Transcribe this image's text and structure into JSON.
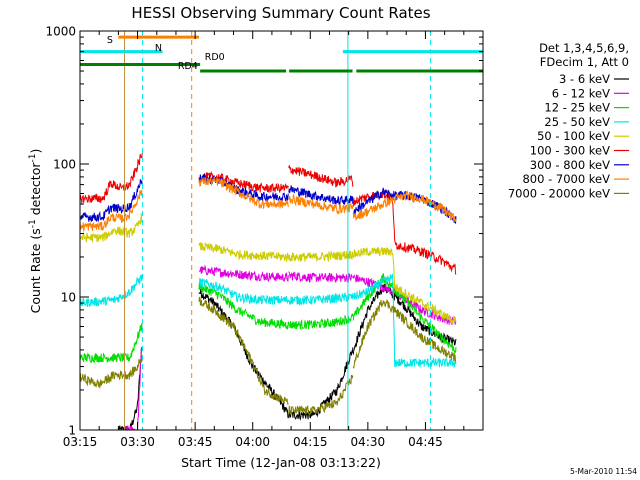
{
  "chart_data": {
    "type": "line",
    "title": "HESSI Observing Summary Count Rates",
    "xlabel": "Start Time (12-Jan-08 03:13:22)",
    "ylabel_main": "Count Rate (s",
    "ylabel_sup1": "-1",
    "ylabel_mid": " detector",
    "ylabel_sup2": "-1",
    "ylabel_end": ")",
    "yscale": "log",
    "xlim_min": [
      195,
      300
    ],
    "ylim": [
      1,
      1000
    ],
    "x_ticks": [
      {
        "v": 195,
        "label": "03:15"
      },
      {
        "v": 210,
        "label": "03:30"
      },
      {
        "v": 225,
        "label": "03:45"
      },
      {
        "v": 240,
        "label": "04:00"
      },
      {
        "v": 255,
        "label": "04:15"
      },
      {
        "v": 270,
        "label": "04:30"
      },
      {
        "v": 285,
        "label": "04:45"
      }
    ],
    "y_ticks": [
      {
        "v": 1,
        "label": "1"
      },
      {
        "v": 10,
        "label": "10"
      },
      {
        "v": 100,
        "label": "100"
      },
      {
        "v": 1000,
        "label": "1000"
      }
    ],
    "legend_header": [
      "Det 1,3,4,5,6,9,",
      "FDecim 1, Att 0"
    ],
    "timestamp": "5-Mar-2010 11:54",
    "flag_bars": [
      {
        "label": "S",
        "color": "#ff8000",
        "value": 900,
        "segments": [
          [
            205,
            226
          ]
        ]
      },
      {
        "label": "N",
        "color": "#00e5e5",
        "value": 700,
        "segments": [
          [
            195,
            216.5
          ],
          [
            263.5,
            300
          ]
        ]
      },
      {
        "label": "RD0",
        "color": "#008000",
        "value": 560,
        "segments": [
          [
            195,
            226.3
          ]
        ]
      },
      {
        "label": "RD4",
        "color": "#008000",
        "value": 500,
        "segments": [
          [
            226.3,
            248.7
          ],
          [
            249.5,
            266
          ],
          [
            267,
            300
          ]
        ]
      }
    ],
    "flag_bar_labels": [
      {
        "text": "S",
        "x": 202,
        "color": "#ff8000"
      },
      {
        "text": "N",
        "x": 214.5,
        "color": "#00c8c8"
      },
      {
        "text": "RD4",
        "x": 220.5,
        "color": "#008000"
      },
      {
        "text": "RD0",
        "x": 227.5,
        "color": "#008000"
      }
    ],
    "vlines": [
      {
        "x": 206.6,
        "color": "#c09040",
        "style": "solid"
      },
      {
        "x": 211.3,
        "color": "#00e5e5",
        "style": "dashed"
      },
      {
        "x": 224.1,
        "color": "#ff8000",
        "style": "dashed"
      },
      {
        "x": 264.8,
        "color": "#00e5e5",
        "style": "solid"
      },
      {
        "x": 286.3,
        "color": "#00e5e5",
        "style": "dashed"
      }
    ],
    "segments": [
      [
        195,
        211.3
      ],
      [
        226,
        249.3
      ],
      [
        249.4,
        266.2
      ],
      [
        266.2,
        300
      ]
    ],
    "series": [
      {
        "name": "3 - 6 keV",
        "color": "#000000",
        "points": [
          [
            205,
            1
          ],
          [
            208,
            1
          ],
          [
            210,
            1.5
          ],
          [
            211,
            4
          ],
          [
            226,
            11
          ],
          [
            230,
            9
          ],
          [
            235,
            6
          ],
          [
            240,
            3
          ],
          [
            248,
            1.5
          ],
          [
            249.3,
            1.3
          ],
          [
            249.4,
            1.3
          ],
          [
            256,
            1.3
          ],
          [
            262,
            2
          ],
          [
            266,
            4
          ],
          [
            266.2,
            4
          ],
          [
            270,
            8
          ],
          [
            274,
            12
          ],
          [
            279,
            9
          ],
          [
            284,
            6
          ],
          [
            289,
            5
          ],
          [
            293,
            4.5
          ]
        ]
      },
      {
        "name": "6 - 12 keV",
        "color": "#e000e0",
        "points": [
          [
            206.5,
            1
          ],
          [
            208,
            1
          ],
          [
            210,
            1
          ],
          [
            211,
            4
          ],
          [
            226,
            16
          ],
          [
            235,
            15
          ],
          [
            240,
            14.5
          ],
          [
            249.3,
            14
          ],
          [
            249.4,
            14.5
          ],
          [
            256,
            14
          ],
          [
            266,
            14
          ],
          [
            266.2,
            14
          ],
          [
            270,
            13
          ],
          [
            274,
            12
          ],
          [
            279,
            10
          ],
          [
            284,
            8
          ],
          [
            289,
            7
          ],
          [
            293,
            6.5
          ]
        ]
      },
      {
        "name": "12 - 25 keV",
        "color": "#00dd00",
        "points": [
          [
            195,
            3.5
          ],
          [
            208,
            3.5
          ],
          [
            210,
            5
          ],
          [
            211,
            6
          ],
          [
            226,
            12
          ],
          [
            231,
            10.5
          ],
          [
            236,
            8
          ],
          [
            242,
            6.5
          ],
          [
            249.3,
            6.2
          ],
          [
            249.4,
            6.2
          ],
          [
            256,
            6.2
          ],
          [
            262,
            6.5
          ],
          [
            266,
            7
          ],
          [
            266.2,
            7
          ],
          [
            270,
            10
          ],
          [
            274,
            14
          ],
          [
            279,
            10
          ],
          [
            284,
            7
          ],
          [
            289,
            5
          ],
          [
            293,
            4
          ]
        ]
      },
      {
        "name": "25 - 50 keV",
        "color": "#00e5e5",
        "points": [
          [
            195,
            9
          ],
          [
            204,
            9.5
          ],
          [
            208,
            11
          ],
          [
            210,
            13
          ],
          [
            211,
            14
          ],
          [
            226,
            13
          ],
          [
            231,
            12
          ],
          [
            236,
            10
          ],
          [
            242,
            9.5
          ],
          [
            249.3,
            9.5
          ],
          [
            249.4,
            9.5
          ],
          [
            256,
            9.5
          ],
          [
            262,
            9.8
          ],
          [
            266,
            10
          ],
          [
            266.2,
            10
          ],
          [
            270,
            11
          ],
          [
            274,
            13
          ],
          [
            276.5,
            14
          ],
          [
            277,
            3.2
          ],
          [
            293,
            3.2
          ]
        ]
      },
      {
        "name": "50 - 100 keV",
        "color": "#cccc00",
        "points": [
          [
            195,
            28
          ],
          [
            201,
            28
          ],
          [
            204,
            32
          ],
          [
            208,
            30
          ],
          [
            210,
            34
          ],
          [
            211,
            40
          ],
          [
            226,
            24
          ],
          [
            231,
            23
          ],
          [
            236,
            21
          ],
          [
            242,
            20.5
          ],
          [
            249.3,
            20
          ],
          [
            249.4,
            20
          ],
          [
            256,
            20
          ],
          [
            262,
            20.5
          ],
          [
            266,
            21
          ],
          [
            266.2,
            21
          ],
          [
            270,
            22
          ],
          [
            274,
            22
          ],
          [
            276.5,
            22
          ],
          [
            277,
            12
          ],
          [
            284,
            9
          ],
          [
            289,
            7.5
          ],
          [
            293,
            6.5
          ]
        ]
      },
      {
        "name": "100 - 300 keV",
        "color": "#ee0000",
        "points": [
          [
            195,
            55
          ],
          [
            201,
            55
          ],
          [
            203,
            72
          ],
          [
            206,
            65
          ],
          [
            208,
            70
          ],
          [
            211,
            115
          ],
          [
            226,
            80
          ],
          [
            231,
            80
          ],
          [
            236,
            72
          ],
          [
            242,
            66
          ],
          [
            249.3,
            66
          ],
          [
            249.4,
            92
          ],
          [
            256,
            82
          ],
          [
            262,
            72
          ],
          [
            266,
            78
          ],
          [
            266.2,
            52
          ],
          [
            270,
            57
          ],
          [
            274,
            60
          ],
          [
            276.5,
            54
          ],
          [
            277,
            25
          ],
          [
            284,
            22
          ],
          [
            289,
            19
          ],
          [
            293,
            16
          ]
        ]
      },
      {
        "name": "300 - 800 keV",
        "color": "#0000cc",
        "points": [
          [
            195,
            40
          ],
          [
            201,
            40
          ],
          [
            203,
            47
          ],
          [
            206,
            46
          ],
          [
            208,
            48
          ],
          [
            211,
            75
          ],
          [
            226,
            78
          ],
          [
            231,
            76
          ],
          [
            236,
            64
          ],
          [
            242,
            57
          ],
          [
            249.3,
            57
          ],
          [
            249.4,
            65
          ],
          [
            256,
            58
          ],
          [
            262,
            53
          ],
          [
            266,
            54
          ],
          [
            266.2,
            44
          ],
          [
            270,
            52
          ],
          [
            274,
            62
          ],
          [
            276.5,
            58
          ],
          [
            280,
            58
          ],
          [
            284,
            55
          ],
          [
            289,
            47
          ],
          [
            293,
            38
          ]
        ]
      },
      {
        "name": "800 - 7000 keV",
        "color": "#ff8000",
        "points": [
          [
            195,
            34
          ],
          [
            201,
            34
          ],
          [
            203,
            40
          ],
          [
            206,
            39
          ],
          [
            208,
            42
          ],
          [
            211,
            62
          ],
          [
            226,
            74
          ],
          [
            231,
            74
          ],
          [
            236,
            62
          ],
          [
            242,
            50
          ],
          [
            249.3,
            50
          ],
          [
            249.4,
            55
          ],
          [
            256,
            50
          ],
          [
            262,
            46
          ],
          [
            266,
            47
          ],
          [
            266.2,
            40
          ],
          [
            270,
            44
          ],
          [
            274,
            50
          ],
          [
            276.5,
            54
          ],
          [
            280,
            58
          ],
          [
            284,
            55
          ],
          [
            289,
            47
          ],
          [
            293,
            38
          ]
        ]
      },
      {
        "name": "7000 - 20000 keV",
        "color": "#808000",
        "points": [
          [
            195,
            2.5
          ],
          [
            200,
            2.2
          ],
          [
            204,
            2.6
          ],
          [
            208,
            2.6
          ],
          [
            210,
            3
          ],
          [
            211,
            3.5
          ],
          [
            226,
            9.5
          ],
          [
            230,
            8
          ],
          [
            235,
            6
          ],
          [
            240,
            3.2
          ],
          [
            243,
            2
          ],
          [
            249.3,
            1.6
          ],
          [
            249.4,
            1.4
          ],
          [
            256,
            1.4
          ],
          [
            262,
            1.6
          ],
          [
            266,
            2.5
          ],
          [
            266.2,
            3
          ],
          [
            270,
            6
          ],
          [
            274,
            9.5
          ],
          [
            279,
            7
          ],
          [
            284,
            5
          ],
          [
            289,
            4
          ],
          [
            293,
            3.5
          ]
        ]
      }
    ]
  }
}
